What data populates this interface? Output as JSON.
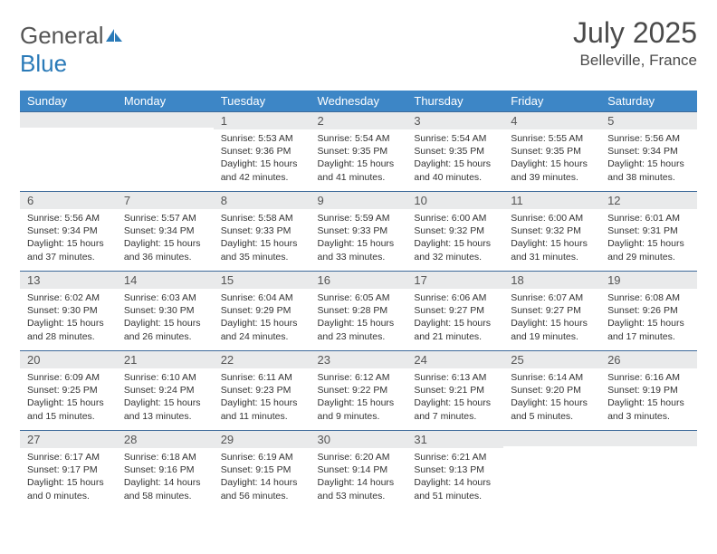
{
  "logo": {
    "text1": "General",
    "text2": "Blue"
  },
  "title": "July 2025",
  "location": "Belleville, France",
  "colors": {
    "header_bg": "#3d86c6",
    "header_text": "#ffffff",
    "daynum_bg": "#e9eaeb",
    "row_divider": "#3d6a9a",
    "logo_blue": "#2a7ab8"
  },
  "weekdays": [
    "Sunday",
    "Monday",
    "Tuesday",
    "Wednesday",
    "Thursday",
    "Friday",
    "Saturday"
  ],
  "weeks": [
    [
      null,
      null,
      {
        "n": "1",
        "sr": "5:53 AM",
        "ss": "9:36 PM",
        "dl": "15 hours and 42 minutes."
      },
      {
        "n": "2",
        "sr": "5:54 AM",
        "ss": "9:35 PM",
        "dl": "15 hours and 41 minutes."
      },
      {
        "n": "3",
        "sr": "5:54 AM",
        "ss": "9:35 PM",
        "dl": "15 hours and 40 minutes."
      },
      {
        "n": "4",
        "sr": "5:55 AM",
        "ss": "9:35 PM",
        "dl": "15 hours and 39 minutes."
      },
      {
        "n": "5",
        "sr": "5:56 AM",
        "ss": "9:34 PM",
        "dl": "15 hours and 38 minutes."
      }
    ],
    [
      {
        "n": "6",
        "sr": "5:56 AM",
        "ss": "9:34 PM",
        "dl": "15 hours and 37 minutes."
      },
      {
        "n": "7",
        "sr": "5:57 AM",
        "ss": "9:34 PM",
        "dl": "15 hours and 36 minutes."
      },
      {
        "n": "8",
        "sr": "5:58 AM",
        "ss": "9:33 PM",
        "dl": "15 hours and 35 minutes."
      },
      {
        "n": "9",
        "sr": "5:59 AM",
        "ss": "9:33 PM",
        "dl": "15 hours and 33 minutes."
      },
      {
        "n": "10",
        "sr": "6:00 AM",
        "ss": "9:32 PM",
        "dl": "15 hours and 32 minutes."
      },
      {
        "n": "11",
        "sr": "6:00 AM",
        "ss": "9:32 PM",
        "dl": "15 hours and 31 minutes."
      },
      {
        "n": "12",
        "sr": "6:01 AM",
        "ss": "9:31 PM",
        "dl": "15 hours and 29 minutes."
      }
    ],
    [
      {
        "n": "13",
        "sr": "6:02 AM",
        "ss": "9:30 PM",
        "dl": "15 hours and 28 minutes."
      },
      {
        "n": "14",
        "sr": "6:03 AM",
        "ss": "9:30 PM",
        "dl": "15 hours and 26 minutes."
      },
      {
        "n": "15",
        "sr": "6:04 AM",
        "ss": "9:29 PM",
        "dl": "15 hours and 24 minutes."
      },
      {
        "n": "16",
        "sr": "6:05 AM",
        "ss": "9:28 PM",
        "dl": "15 hours and 23 minutes."
      },
      {
        "n": "17",
        "sr": "6:06 AM",
        "ss": "9:27 PM",
        "dl": "15 hours and 21 minutes."
      },
      {
        "n": "18",
        "sr": "6:07 AM",
        "ss": "9:27 PM",
        "dl": "15 hours and 19 minutes."
      },
      {
        "n": "19",
        "sr": "6:08 AM",
        "ss": "9:26 PM",
        "dl": "15 hours and 17 minutes."
      }
    ],
    [
      {
        "n": "20",
        "sr": "6:09 AM",
        "ss": "9:25 PM",
        "dl": "15 hours and 15 minutes."
      },
      {
        "n": "21",
        "sr": "6:10 AM",
        "ss": "9:24 PM",
        "dl": "15 hours and 13 minutes."
      },
      {
        "n": "22",
        "sr": "6:11 AM",
        "ss": "9:23 PM",
        "dl": "15 hours and 11 minutes."
      },
      {
        "n": "23",
        "sr": "6:12 AM",
        "ss": "9:22 PM",
        "dl": "15 hours and 9 minutes."
      },
      {
        "n": "24",
        "sr": "6:13 AM",
        "ss": "9:21 PM",
        "dl": "15 hours and 7 minutes."
      },
      {
        "n": "25",
        "sr": "6:14 AM",
        "ss": "9:20 PM",
        "dl": "15 hours and 5 minutes."
      },
      {
        "n": "26",
        "sr": "6:16 AM",
        "ss": "9:19 PM",
        "dl": "15 hours and 3 minutes."
      }
    ],
    [
      {
        "n": "27",
        "sr": "6:17 AM",
        "ss": "9:17 PM",
        "dl": "15 hours and 0 minutes."
      },
      {
        "n": "28",
        "sr": "6:18 AM",
        "ss": "9:16 PM",
        "dl": "14 hours and 58 minutes."
      },
      {
        "n": "29",
        "sr": "6:19 AM",
        "ss": "9:15 PM",
        "dl": "14 hours and 56 minutes."
      },
      {
        "n": "30",
        "sr": "6:20 AM",
        "ss": "9:14 PM",
        "dl": "14 hours and 53 minutes."
      },
      {
        "n": "31",
        "sr": "6:21 AM",
        "ss": "9:13 PM",
        "dl": "14 hours and 51 minutes."
      },
      null,
      null
    ]
  ],
  "labels": {
    "sunrise": "Sunrise:",
    "sunset": "Sunset:",
    "daylight": "Daylight:"
  }
}
